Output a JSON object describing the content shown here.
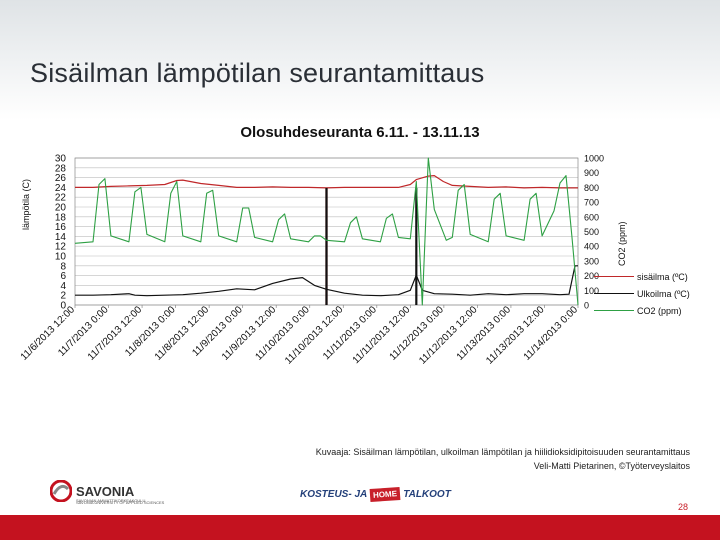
{
  "slide": {
    "title": "Sisäilman lämpötilan seurantamittaus",
    "caption_line1": "Kuvaaja: Sisäilman lämpötilan, ulkoilman lämpötilan ja hiilidioksidipitoisuuden seurantamittaus",
    "caption_line2": "Veli-Matti Pietarinen, ©Työterveyslaitos",
    "page_number": "28"
  },
  "footer": {
    "savonia_name": "SAVONIA",
    "savonia_sub_1": "SAVONIAN AMMATTIKORKEAKOULU",
    "savonia_sub_2": "SAVONIA UNIVERSITY OF APPLIED SCIENCES",
    "kosteus_prefix": "KOSTEUS- JA",
    "kosteus_badge": "HOME",
    "kosteus_suffix": "TALKOOT"
  },
  "colors": {
    "indoor": "#c0282a",
    "outdoor": "#111111",
    "co2": "#2ea044",
    "bottom_bar": "#c4121f"
  },
  "chart_data": {
    "type": "line",
    "title": "Olosuhdeseuranta 6.11. - 13.11.13",
    "ylabel_left": "lämpötila (C)",
    "ylabel_right": "CO2 (ppm)",
    "ylim_left": [
      0,
      30
    ],
    "ylim_right": [
      0,
      1000
    ],
    "y_ticks_left": [
      "0",
      "2",
      "4",
      "6",
      "8",
      "10",
      "12",
      "14",
      "16",
      "18",
      "20",
      "22",
      "24",
      "26",
      "28",
      "30"
    ],
    "y_ticks_right": [
      "0",
      "100",
      "200",
      "300",
      "400",
      "500",
      "600",
      "700",
      "800",
      "900",
      "1000"
    ],
    "x_ticks": [
      "11/6/2013 12:00",
      "11/7/2013 0:00",
      "11/7/2013 12:00",
      "11/8/2013 0:00",
      "11/8/2013 12:00",
      "11/9/2013 0:00",
      "11/9/2013 12:00",
      "11/10/2013 0:00",
      "11/10/2013 12:00",
      "11/11/2013 0:00",
      "11/11/2013 12:00",
      "11/12/2013 0:00",
      "11/12/2013 12:00",
      "11/13/2013 0:00",
      "11/13/2013 12:00",
      "11/14/2013 0:00"
    ],
    "x_range_hours": [
      0,
      168
    ],
    "legend_position": "right",
    "grid": "horizontal",
    "series": [
      {
        "name": "sisäilma (ºC)",
        "axis": "left",
        "color": "#c0282a",
        "x": [
          0,
          6,
          12,
          18,
          24,
          30,
          34,
          36,
          42,
          48,
          54,
          60,
          66,
          72,
          78,
          84,
          90,
          96,
          102,
          108,
          112,
          114,
          118,
          120,
          123,
          126,
          132,
          138,
          144,
          150,
          156,
          162,
          168
        ],
        "y": [
          24.0,
          24.0,
          24.2,
          24.3,
          24.4,
          24.6,
          25.4,
          25.5,
          24.8,
          24.4,
          24.0,
          24.0,
          24.1,
          24.0,
          24.0,
          23.9,
          24.0,
          24.0,
          24.0,
          24.0,
          24.6,
          25.6,
          26.3,
          26.4,
          25.2,
          24.4,
          24.2,
          24.0,
          24.1,
          23.9,
          24.0,
          23.9,
          23.9
        ],
        "gaps": [
          [
            84,
            85
          ]
        ]
      },
      {
        "name": "Ulkoilma (ºC)",
        "axis": "left",
        "color": "#111111",
        "x": [
          0,
          6,
          12,
          18,
          20,
          24,
          30,
          36,
          42,
          48,
          54,
          60,
          66,
          72,
          76,
          80,
          84,
          90,
          96,
          102,
          108,
          112,
          114,
          116,
          120,
          126,
          132,
          138,
          144,
          150,
          156,
          162,
          165,
          167,
          168
        ],
        "y": [
          2.0,
          2.0,
          2.1,
          2.3,
          2.0,
          1.9,
          2.0,
          2.1,
          2.4,
          2.8,
          3.3,
          3.1,
          4.4,
          5.3,
          5.6,
          4.0,
          3.2,
          2.4,
          2.0,
          1.9,
          2.1,
          3.0,
          6.1,
          3.0,
          2.3,
          2.2,
          2.0,
          2.3,
          2.1,
          2.3,
          2.3,
          2.1,
          2.2,
          8.0,
          8.0
        ],
        "gaps": [
          [
            84,
            85
          ],
          [
            114,
            115
          ]
        ]
      },
      {
        "name": "CO2 (ppm)",
        "axis": "right",
        "color": "#2ea044",
        "x": [
          0,
          6,
          8,
          10,
          12,
          18,
          20,
          22,
          24,
          30,
          32,
          34,
          36,
          42,
          44,
          46,
          48,
          54,
          56,
          58,
          60,
          66,
          68,
          70,
          72,
          78,
          80,
          82,
          84,
          90,
          92,
          94,
          96,
          102,
          104,
          106,
          108,
          112,
          114,
          116,
          118,
          120,
          124,
          126,
          128,
          130,
          132,
          138,
          140,
          142,
          144,
          150,
          152,
          154,
          156,
          160,
          162,
          164,
          166,
          168
        ],
        "y": [
          420,
          430,
          820,
          860,
          470,
          430,
          770,
          800,
          480,
          430,
          760,
          840,
          470,
          430,
          760,
          780,
          470,
          430,
          660,
          660,
          460,
          430,
          580,
          620,
          450,
          430,
          470,
          470,
          440,
          430,
          560,
          600,
          450,
          430,
          590,
          620,
          460,
          450,
          840,
          0,
          1000,
          650,
          440,
          460,
          780,
          820,
          480,
          430,
          720,
          760,
          470,
          440,
          720,
          760,
          470,
          640,
          830,
          880,
          460,
          0
        ]
      }
    ]
  }
}
